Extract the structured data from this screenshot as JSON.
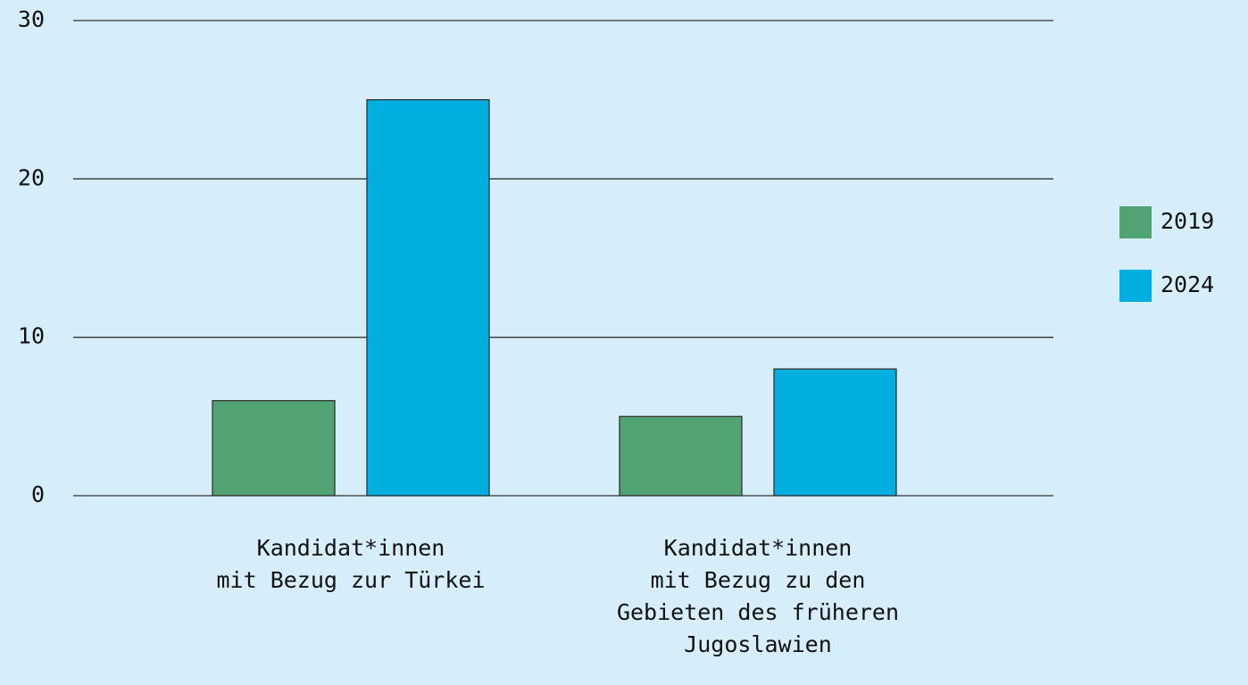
{
  "chart_data": {
    "type": "bar",
    "categories": [
      "Kandidat*innen\nmit Bezug zur Türkei",
      "Kandidat*innen\nmit Bezug zu den\nGebieten des früheren\nJugoslawien"
    ],
    "series": [
      {
        "name": "2019",
        "color": "#52a374",
        "values": [
          6,
          5
        ]
      },
      {
        "name": "2024",
        "color": "#00aee0",
        "values": [
          25,
          8
        ]
      }
    ],
    "ylim": [
      0,
      30
    ],
    "yticks": [
      0,
      10,
      20,
      30
    ],
    "grid": true,
    "legend": "right"
  }
}
